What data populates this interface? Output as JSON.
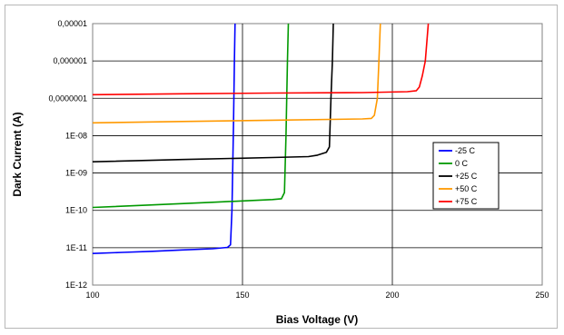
{
  "chart_data": {
    "type": "line",
    "title": "",
    "xlabel": "Bias Voltage (V)",
    "ylabel": "Dark Current (A)",
    "xlim": [
      100,
      250
    ],
    "ylim": [
      1e-12,
      1e-05
    ],
    "yscale": "log",
    "grid": true,
    "legend_position": "right",
    "x_tick_values": [
      100,
      150,
      200,
      250
    ],
    "x_tick_labels": [
      "100",
      "150",
      "200",
      "250"
    ],
    "y_tick_values": [
      1e-12,
      1e-11,
      1e-10,
      1e-09,
      1e-08,
      1e-07,
      1e-06,
      1e-05
    ],
    "y_tick_labels": [
      "1E-12",
      "1E-11",
      "1E-10",
      "1E-09",
      "1E-08",
      "0,0000001",
      "0,000001",
      "0,00001"
    ],
    "series": [
      {
        "name": "-25 C",
        "color": "#0000ff",
        "points": [
          [
            100,
            7e-12
          ],
          [
            110,
            7.5e-12
          ],
          [
            120,
            8e-12
          ],
          [
            130,
            8.7e-12
          ],
          [
            140,
            9.4e-12
          ],
          [
            145,
            1.02e-11
          ],
          [
            146,
            1.2e-11
          ],
          [
            146.5,
            1e-10
          ],
          [
            147,
            2e-08
          ],
          [
            147.3,
            1e-06
          ],
          [
            147.5,
            1e-05
          ]
        ]
      },
      {
        "name": "0 C",
        "color": "#009900",
        "points": [
          [
            100,
            1.2e-10
          ],
          [
            120,
            1.4e-10
          ],
          [
            140,
            1.65e-10
          ],
          [
            160,
            1.95e-10
          ],
          [
            163,
            2.05e-10
          ],
          [
            164,
            3e-10
          ],
          [
            164.5,
            1e-08
          ],
          [
            165,
            1e-06
          ],
          [
            165.3,
            1e-05
          ]
        ]
      },
      {
        "name": "+25 C",
        "color": "#000000",
        "points": [
          [
            100,
            2e-09
          ],
          [
            130,
            2.3e-09
          ],
          [
            160,
            2.6e-09
          ],
          [
            172,
            2.75e-09
          ],
          [
            175,
            3e-09
          ],
          [
            178,
            3.6e-09
          ],
          [
            179,
            5e-09
          ],
          [
            179.5,
            1e-07
          ],
          [
            180,
            1e-06
          ],
          [
            180.3,
            1e-05
          ]
        ]
      },
      {
        "name": "+50 C",
        "color": "#ff9900",
        "points": [
          [
            100,
            2.2e-08
          ],
          [
            130,
            2.4e-08
          ],
          [
            160,
            2.6e-08
          ],
          [
            190,
            2.8e-08
          ],
          [
            193,
            2.9e-08
          ],
          [
            194,
            3.5e-08
          ],
          [
            195,
            1e-07
          ],
          [
            195.5,
            1e-06
          ],
          [
            196,
            1e-05
          ]
        ]
      },
      {
        "name": "+75 C",
        "color": "#ff0000",
        "points": [
          [
            100,
            1.25e-07
          ],
          [
            130,
            1.32e-07
          ],
          [
            160,
            1.38e-07
          ],
          [
            190,
            1.42e-07
          ],
          [
            205,
            1.5e-07
          ],
          [
            208,
            1.6e-07
          ],
          [
            209,
            2e-07
          ],
          [
            210,
            4e-07
          ],
          [
            211,
            1e-06
          ],
          [
            212,
            1e-05
          ]
        ]
      }
    ]
  }
}
